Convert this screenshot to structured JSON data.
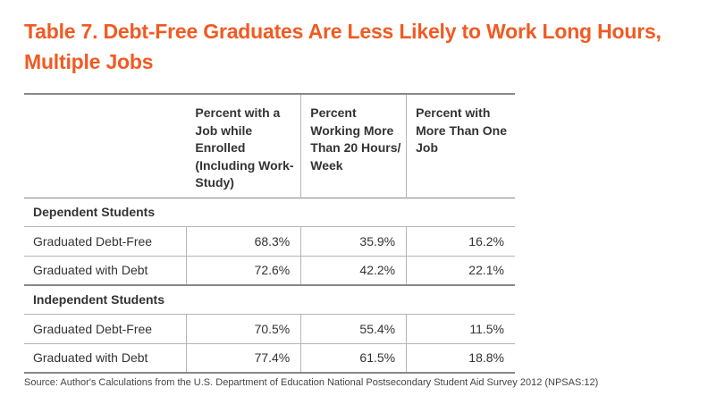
{
  "title": "Table 7. Debt-Free Graduates Are Less Likely to Work Long Hours, Multiple Jobs",
  "table": {
    "columns": [
      "",
      "Percent with a Job while Enrolled (Including Work-Study)",
      "Percent Working More Than 20 Hours/ Week",
      "Percent with More Than One Job"
    ],
    "groups": [
      {
        "name": "Dependent Students",
        "rows": [
          {
            "label": "Graduated Debt-Free",
            "values": [
              "68.3%",
              "35.9%",
              "16.2%"
            ]
          },
          {
            "label": "Graduated with Debt",
            "values": [
              "72.6%",
              "42.2%",
              "22.1%"
            ]
          }
        ]
      },
      {
        "name": "Independent Students",
        "rows": [
          {
            "label": "Graduated Debt-Free",
            "values": [
              "70.5%",
              "55.4%",
              "11.5%"
            ]
          },
          {
            "label": "Graduated with Debt",
            "values": [
              "77.4%",
              "61.5%",
              "18.8%"
            ]
          }
        ]
      }
    ]
  },
  "source": "Source:  Author's Calculations from the U.S. Department of Education National Postsecondary Student Aid Survey 2012 (NPSAS:12)",
  "colors": {
    "title": "#f15a22",
    "text": "#333333",
    "rule": "#888888"
  }
}
